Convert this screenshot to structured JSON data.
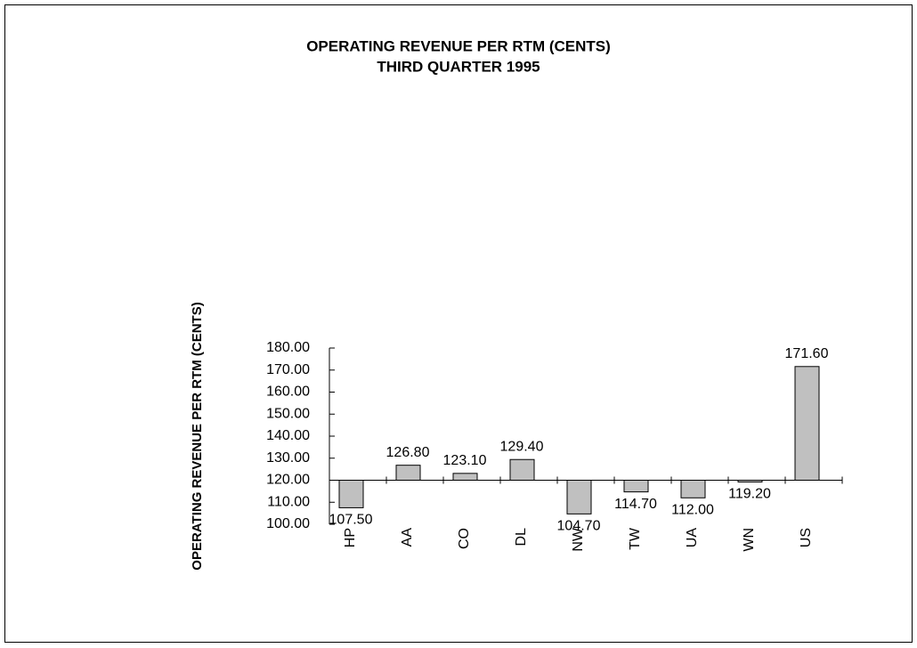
{
  "chart_data": {
    "type": "bar",
    "title": "OPERATING REVENUE PER RTM (CENTS)",
    "subtitle": "THIRD QUARTER 1995",
    "y_label": "OPERATING REVENUE PER RTM (CENTS)",
    "categories": [
      "HP",
      "AA",
      "CO",
      "DL",
      "NW",
      "TW",
      "UA",
      "WN",
      "US"
    ],
    "values": [
      107.5,
      126.8,
      123.1,
      129.4,
      104.7,
      114.7,
      112.0,
      119.2,
      171.6
    ],
    "value_labels": [
      "107.50",
      "126.80",
      "123.10",
      "129.40",
      "104.70",
      "114.70",
      "112.00",
      "119.20",
      "171.60"
    ],
    "color": "#c0c0c0",
    "baseline": 120,
    "ylim": [
      100,
      180
    ],
    "yticks": [
      {
        "value": 100,
        "label": "100.00"
      },
      {
        "value": 110,
        "label": "110.00"
      },
      {
        "value": 120,
        "label": "120.00"
      },
      {
        "value": 130,
        "label": "130.00"
      },
      {
        "value": 140,
        "label": "140.00"
      },
      {
        "value": 150,
        "label": "150.00"
      },
      {
        "value": 160,
        "label": "160.00"
      },
      {
        "value": 170,
        "label": "170.00"
      },
      {
        "value": 180,
        "label": "180.00"
      }
    ],
    "grid": false
  }
}
